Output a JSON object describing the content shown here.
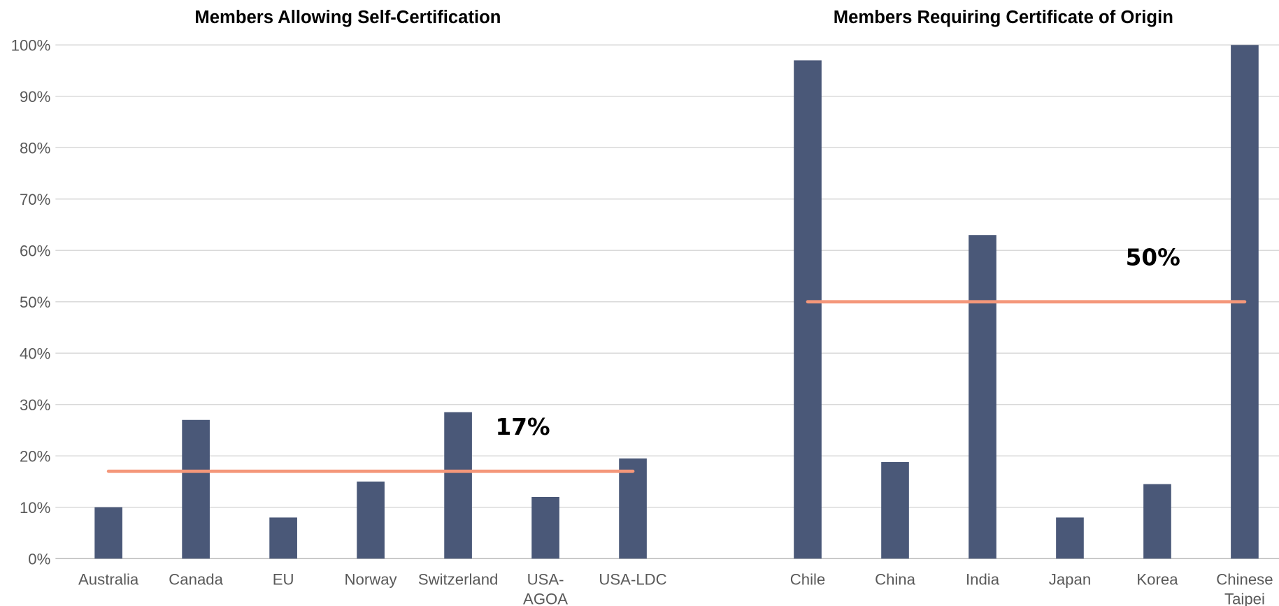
{
  "chart_data": {
    "type": "bar",
    "color": "#4a5878",
    "average_color": "#f4977a",
    "ylim": [
      0,
      100
    ],
    "yticks": [
      {
        "value": 0,
        "label": "0%"
      },
      {
        "value": 10,
        "label": "10%"
      },
      {
        "value": 20,
        "label": "20%"
      },
      {
        "value": 30,
        "label": "30%"
      },
      {
        "value": 40,
        "label": "40%"
      },
      {
        "value": 50,
        "label": "50%"
      },
      {
        "value": 60,
        "label": "60%"
      },
      {
        "value": 70,
        "label": "70%"
      },
      {
        "value": 80,
        "label": "80%"
      },
      {
        "value": 90,
        "label": "90%"
      },
      {
        "value": 100,
        "label": "100%"
      }
    ],
    "grid": true,
    "groups": [
      {
        "title": "Members Allowing Self-Certification",
        "categories": [
          "Australia",
          "Canada",
          "EU",
          "Norway",
          "Switzerland",
          "USA-\nAGOA",
          "USA-LDC"
        ],
        "values": [
          10,
          27,
          8,
          15,
          28.5,
          12,
          19.5
        ],
        "average": 17,
        "average_label": "17%"
      },
      {
        "title": "Members Requiring Certificate of Origin",
        "categories": [
          "Chile",
          "China",
          "India",
          "Japan",
          "Korea",
          "Chinese\nTaipei"
        ],
        "values": [
          97,
          18.8,
          63,
          8,
          14.5,
          100
        ],
        "average": 50,
        "average_label": "50%"
      }
    ]
  }
}
